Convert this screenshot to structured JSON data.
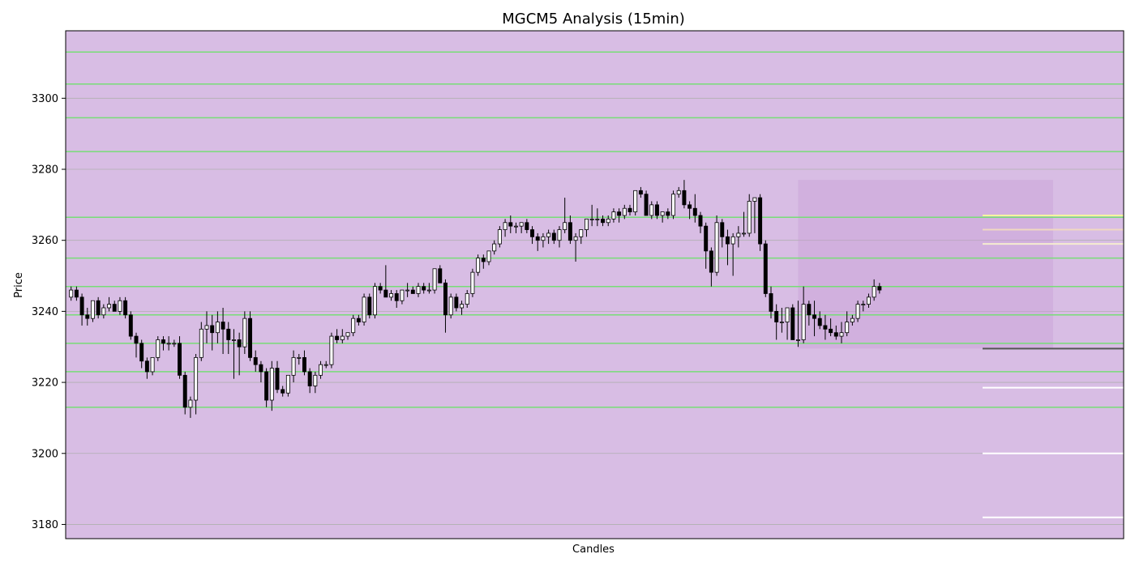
{
  "chart_data": {
    "type": "candlestick",
    "title": "MGCM5 Analysis (15min)",
    "xlabel": "Candles",
    "ylabel": "Price",
    "ylim": [
      3176,
      3319
    ],
    "yticks": [
      3180,
      3200,
      3220,
      3240,
      3260,
      3280,
      3300
    ],
    "grid": true,
    "background_color": "#d8bde4",
    "green_level_color": "#77dd77",
    "green_levels": [
      3313,
      3304,
      3294.5,
      3285,
      3266.5,
      3255,
      3247,
      3239,
      3231,
      3223,
      3213
    ],
    "highlight_zone": {
      "x_start": 134,
      "x_end": 181,
      "y_low": 3229.5,
      "y_high": 3277
    },
    "projection_lines": [
      {
        "x_start": 168,
        "y": 3267,
        "color": "#f5f5a0"
      },
      {
        "x_start": 168,
        "y": 3263,
        "color": "#f0d8c0"
      },
      {
        "x_start": 168,
        "y": 3259,
        "color": "#f5ecd0"
      },
      {
        "x_start": 168,
        "y": 3229.5,
        "color": "#555555"
      },
      {
        "x_start": 168,
        "y": 3218.5,
        "color": "#ffffff"
      },
      {
        "x_start": 168,
        "y": 3200,
        "color": "#ffffff"
      },
      {
        "x_start": 168,
        "y": 3182,
        "color": "#ffffff"
      }
    ],
    "x_range": [
      -1,
      194
    ],
    "candles": [
      [
        3244,
        3247,
        3243,
        3246
      ],
      [
        3246,
        3247,
        3243,
        3244
      ],
      [
        3244,
        3245,
        3236,
        3239
      ],
      [
        3239,
        3241,
        3236,
        3238
      ],
      [
        3238,
        3243,
        3237,
        3243
      ],
      [
        3243,
        3244,
        3238,
        3239
      ],
      [
        3239,
        3242,
        3238,
        3241
      ],
      [
        3241,
        3244,
        3240,
        3242
      ],
      [
        3242,
        3243,
        3240,
        3240
      ],
      [
        3240,
        3244,
        3239,
        3243
      ],
      [
        3243,
        3244,
        3238,
        3239
      ],
      [
        3239,
        3240,
        3232,
        3233
      ],
      [
        3233,
        3234,
        3227,
        3231
      ],
      [
        3231,
        3232,
        3224,
        3226
      ],
      [
        3226,
        3227,
        3221,
        3223
      ],
      [
        3223,
        3227,
        3222,
        3227
      ],
      [
        3227,
        3233,
        3226,
        3232
      ],
      [
        3232,
        3233,
        3229,
        3231
      ],
      [
        3231,
        3233,
        3229,
        3231
      ],
      [
        3231,
        3232,
        3230,
        3231
      ],
      [
        3231,
        3233,
        3221,
        3222
      ],
      [
        3222,
        3223,
        3211,
        3213
      ],
      [
        3213,
        3216,
        3210,
        3215
      ],
      [
        3215,
        3228,
        3211,
        3227
      ],
      [
        3227,
        3237,
        3226,
        3235
      ],
      [
        3235,
        3240,
        3231,
        3236
      ],
      [
        3236,
        3239,
        3229,
        3234
      ],
      [
        3234,
        3240,
        3231,
        3237
      ],
      [
        3237,
        3241,
        3228,
        3235
      ],
      [
        3235,
        3237,
        3228,
        3232
      ],
      [
        3232,
        3235,
        3221,
        3232
      ],
      [
        3232,
        3234,
        3222,
        3230
      ],
      [
        3230,
        3240,
        3228,
        3238
      ],
      [
        3238,
        3240,
        3226,
        3227
      ],
      [
        3227,
        3229,
        3223,
        3225
      ],
      [
        3225,
        3226,
        3220,
        3223
      ],
      [
        3223,
        3224,
        3213,
        3215
      ],
      [
        3215,
        3226,
        3212,
        3224
      ],
      [
        3224,
        3226,
        3217,
        3218
      ],
      [
        3218,
        3219,
        3216,
        3217
      ],
      [
        3217,
        3222,
        3216,
        3222
      ],
      [
        3222,
        3229,
        3220,
        3227
      ],
      [
        3227,
        3228,
        3225,
        3227
      ],
      [
        3227,
        3229,
        3222,
        3223
      ],
      [
        3223,
        3224,
        3217,
        3219
      ],
      [
        3219,
        3223,
        3217,
        3222
      ],
      [
        3222,
        3226,
        3221,
        3225
      ],
      [
        3225,
        3226,
        3224,
        3225
      ],
      [
        3225,
        3234,
        3224,
        3233
      ],
      [
        3233,
        3235,
        3231,
        3232
      ],
      [
        3232,
        3235,
        3231,
        3233
      ],
      [
        3233,
        3234,
        3232,
        3234
      ],
      [
        3234,
        3239,
        3233,
        3238
      ],
      [
        3238,
        3239,
        3236,
        3237
      ],
      [
        3237,
        3245,
        3236,
        3244
      ],
      [
        3244,
        3245,
        3238,
        3239
      ],
      [
        3239,
        3248,
        3238,
        3247
      ],
      [
        3247,
        3248,
        3245,
        3246
      ],
      [
        3246,
        3253,
        3245,
        3244
      ],
      [
        3244,
        3246,
        3243,
        3245
      ],
      [
        3245,
        3246,
        3241,
        3243
      ],
      [
        3243,
        3246,
        3242,
        3246
      ],
      [
        3246,
        3248,
        3244,
        3246
      ],
      [
        3246,
        3247,
        3245,
        3245
      ],
      [
        3245,
        3248,
        3244,
        3247
      ],
      [
        3247,
        3248,
        3245,
        3246
      ],
      [
        3246,
        3248,
        3245,
        3246
      ],
      [
        3246,
        3252,
        3245,
        3252
      ],
      [
        3252,
        3253,
        3248,
        3248
      ],
      [
        3248,
        3249,
        3234,
        3239
      ],
      [
        3239,
        3245,
        3238,
        3244
      ],
      [
        3244,
        3245,
        3240,
        3241
      ],
      [
        3241,
        3243,
        3239,
        3242
      ],
      [
        3242,
        3246,
        3241,
        3245
      ],
      [
        3245,
        3252,
        3244,
        3251
      ],
      [
        3251,
        3256,
        3250,
        3255
      ],
      [
        3255,
        3256,
        3252,
        3254
      ],
      [
        3254,
        3257,
        3253,
        3257
      ],
      [
        3257,
        3260,
        3256,
        3259
      ],
      [
        3259,
        3264,
        3258,
        3263
      ],
      [
        3263,
        3266,
        3261,
        3265
      ],
      [
        3265,
        3267,
        3262,
        3264
      ],
      [
        3264,
        3265,
        3262,
        3264
      ],
      [
        3264,
        3265,
        3262,
        3265
      ],
      [
        3265,
        3266,
        3262,
        3263
      ],
      [
        3263,
        3264,
        3259,
        3261
      ],
      [
        3261,
        3262,
        3257,
        3260
      ],
      [
        3260,
        3262,
        3258,
        3261
      ],
      [
        3261,
        3263,
        3259,
        3262
      ],
      [
        3262,
        3263,
        3259,
        3260
      ],
      [
        3260,
        3264,
        3258,
        3263
      ],
      [
        3263,
        3272,
        3262,
        3265
      ],
      [
        3265,
        3267,
        3259,
        3260
      ],
      [
        3260,
        3262,
        3254,
        3261
      ],
      [
        3261,
        3263,
        3259,
        3263
      ],
      [
        3263,
        3266,
        3261,
        3266
      ],
      [
        3266,
        3270,
        3264,
        3266
      ],
      [
        3266,
        3269,
        3264,
        3266
      ],
      [
        3266,
        3267,
        3264,
        3265
      ],
      [
        3265,
        3267,
        3264,
        3266
      ],
      [
        3266,
        3269,
        3265,
        3268
      ],
      [
        3268,
        3269,
        3265,
        3267
      ],
      [
        3267,
        3270,
        3266,
        3269
      ],
      [
        3269,
        3270,
        3267,
        3268
      ],
      [
        3268,
        3274,
        3267,
        3274
      ],
      [
        3274,
        3275,
        3272,
        3273
      ],
      [
        3273,
        3274,
        3267,
        3267
      ],
      [
        3267,
        3271,
        3266,
        3270
      ],
      [
        3270,
        3271,
        3266,
        3267
      ],
      [
        3267,
        3268,
        3265,
        3268
      ],
      [
        3268,
        3269,
        3266,
        3267
      ],
      [
        3267,
        3274,
        3266,
        3273
      ],
      [
        3273,
        3275,
        3272,
        3274
      ],
      [
        3274,
        3277,
        3269,
        3270
      ],
      [
        3270,
        3271,
        3266,
        3269
      ],
      [
        3269,
        3273,
        3265,
        3267
      ],
      [
        3267,
        3268,
        3262,
        3264
      ],
      [
        3264,
        3265,
        3252,
        3257
      ],
      [
        3257,
        3258,
        3247,
        3251
      ],
      [
        3251,
        3267,
        3250,
        3265
      ],
      [
        3265,
        3266,
        3258,
        3261
      ],
      [
        3261,
        3263,
        3253,
        3259
      ],
      [
        3259,
        3262,
        3250,
        3261
      ],
      [
        3261,
        3264,
        3258,
        3262
      ],
      [
        3262,
        3268,
        3261,
        3262
      ],
      [
        3262,
        3273,
        3261,
        3271
      ],
      [
        3271,
        3272,
        3262,
        3272
      ],
      [
        3272,
        3273,
        3257,
        3259
      ],
      [
        3259,
        3260,
        3244,
        3245
      ],
      [
        3245,
        3247,
        3238,
        3240
      ],
      [
        3240,
        3242,
        3232,
        3237
      ],
      [
        3237,
        3241,
        3234,
        3237
      ],
      [
        3237,
        3241,
        3232,
        3241
      ],
      [
        3241,
        3242,
        3233,
        3232
      ],
      [
        3232,
        3243,
        3230,
        3232
      ],
      [
        3232,
        3247,
        3231,
        3242
      ],
      [
        3242,
        3243,
        3236,
        3239
      ],
      [
        3239,
        3243,
        3233,
        3238
      ],
      [
        3238,
        3240,
        3235,
        3236
      ],
      [
        3236,
        3239,
        3232,
        3235
      ],
      [
        3235,
        3238,
        3233,
        3234
      ],
      [
        3234,
        3236,
        3232,
        3233
      ],
      [
        3233,
        3237,
        3231,
        3234
      ],
      [
        3234,
        3240,
        3233,
        3237
      ],
      [
        3237,
        3239,
        3236,
        3238
      ],
      [
        3238,
        3243,
        3237,
        3242
      ],
      [
        3242,
        3243,
        3240,
        3242
      ],
      [
        3242,
        3245,
        3241,
        3244
      ],
      [
        3244,
        3249,
        3243,
        3247
      ],
      [
        3247,
        3248,
        3245,
        3246
      ]
    ],
    "candles_note": "each candle is [open, high, low, close]"
  }
}
